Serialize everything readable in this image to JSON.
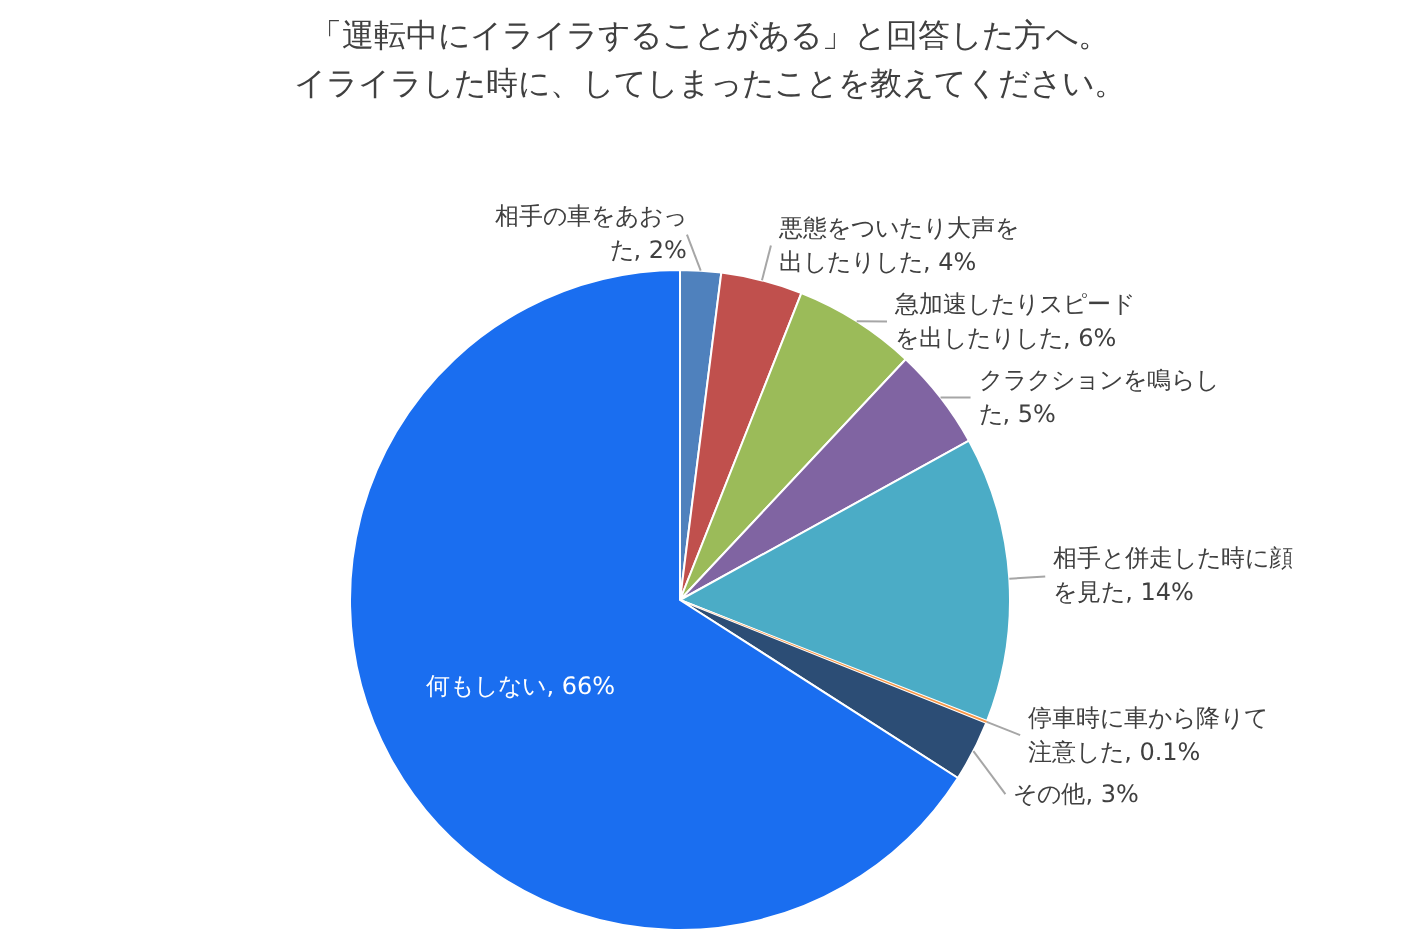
{
  "chart_data": {
    "type": "pie",
    "title": "「運転中にイライラすることがある」と回答した方へ。",
    "subtitle": "イライラした時に、してしまったことを教えてください。",
    "categories": [
      "相手の車をあおった",
      "悪態をついたり大声を出したりした",
      "急加速したりスピードを出したりした",
      "クラクションを鳴らした",
      "相手と併走した時に顔を見た",
      "停車時に車から降りて注意した",
      "その他",
      "何もしない"
    ],
    "values": [
      2,
      4,
      6,
      5,
      14,
      0.1,
      3,
      66
    ],
    "value_labels": [
      "2%",
      "4%",
      "6%",
      "5%",
      "14%",
      "0.1%",
      "3%",
      "66%"
    ],
    "colors": [
      "#4f81bd",
      "#c0504d",
      "#9bbb59",
      "#8064a2",
      "#4bacc6",
      "#f79646",
      "#2c4d75",
      "#1a6ef0"
    ]
  }
}
